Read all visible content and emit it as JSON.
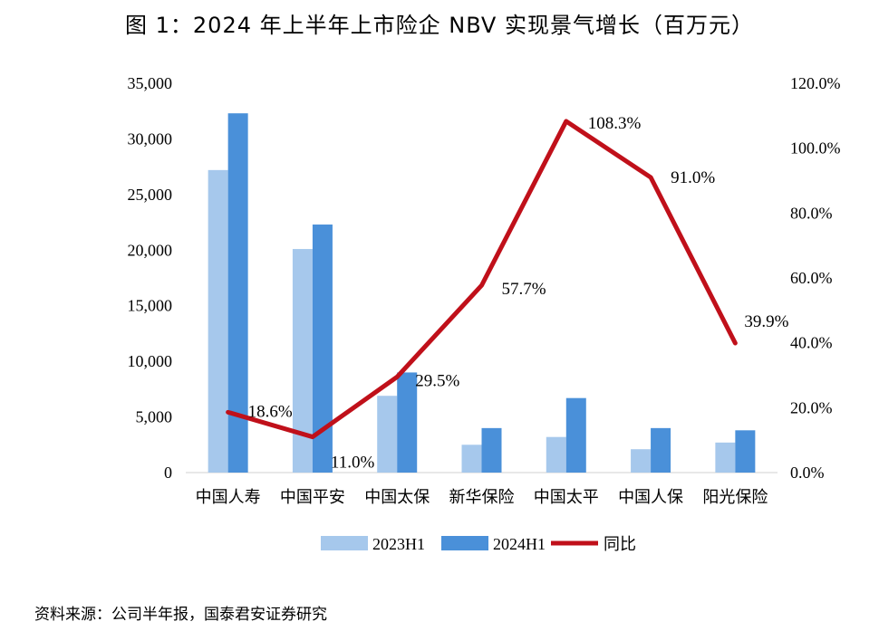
{
  "title": "图 1：2024 年上半年上市险企 NBV 实现景气增长（百万元）",
  "source": "资料来源：公司半年报，国泰君安证券研究",
  "chart_data": {
    "type": "bar",
    "categories": [
      "中国人寿",
      "中国平安",
      "中国太保",
      "新华保险",
      "中国太平",
      "中国人保",
      "阳光保险"
    ],
    "series": [
      {
        "name": "2023H1",
        "type": "bar",
        "axis": "left",
        "color": "#a6c8ec",
        "values": [
          27200,
          20100,
          6900,
          2500,
          3200,
          2100,
          2700
        ]
      },
      {
        "name": "2024H1",
        "type": "bar",
        "axis": "left",
        "color": "#4a90d9",
        "values": [
          32300,
          22300,
          9000,
          4000,
          6700,
          4000,
          3800
        ]
      },
      {
        "name": "同比",
        "type": "line",
        "axis": "right",
        "color": "#c0101a",
        "values": [
          18.6,
          11.0,
          29.5,
          57.7,
          108.3,
          91.0,
          39.9
        ],
        "labels": [
          "18.6%",
          "11.0%",
          "29.5%",
          "57.7%",
          "108.3%",
          "91.0%",
          "39.9%"
        ]
      }
    ],
    "y_left": {
      "min": 0,
      "max": 35000,
      "ticks": [
        "0",
        "5,000",
        "10,000",
        "15,000",
        "20,000",
        "25,000",
        "30,000",
        "35,000"
      ]
    },
    "y_right": {
      "min": 0,
      "max": 120,
      "ticks": [
        "0.0%",
        "20.0%",
        "40.0%",
        "60.0%",
        "80.0%",
        "100.0%",
        "120.0%"
      ]
    },
    "grid": false,
    "legend_position": "bottom-center"
  }
}
